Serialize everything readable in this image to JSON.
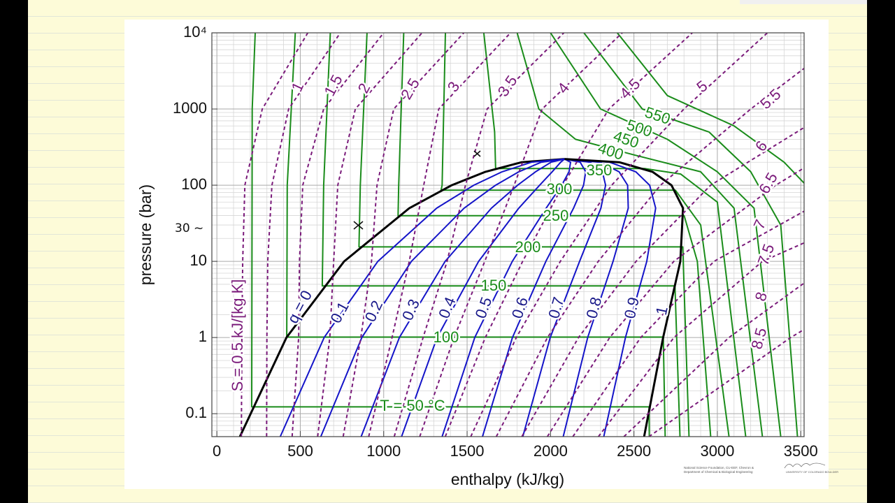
{
  "chart_data": {
    "type": "line",
    "xlabel": "enthalpy (kJ/kg)",
    "ylabel": "pressure (bar)",
    "xlim": [
      -30,
      3520
    ],
    "ylim": [
      0.05,
      10000
    ],
    "xticks": [
      0,
      500,
      1000,
      1500,
      2000,
      2500,
      3000,
      3500
    ],
    "yticks": [
      0.1,
      1,
      10,
      100,
      1000,
      {
        "value": 10000,
        "label": "10⁴"
      }
    ],
    "log_y": true,
    "grid": true,
    "minor_grid": true,
    "annotations": [
      "30 ~"
    ],
    "credits": [
      "National Science Foundation, CU-EEF, Chevron &",
      "Department of Chemical & Biological Engineering",
      "UNIVERSITY OF COLORADO BOULDER"
    ],
    "series": [
      {
        "name": "T = 50 °C",
        "color": "#1a8c1a",
        "dashed": false,
        "x": [
          230,
          212,
          209,
          2591,
          2592
        ],
        "values": [
          10000,
          1000,
          0.123,
          0.123,
          0.05
        ]
      },
      {
        "name": "100",
        "color": "#1a8c1a",
        "dashed": false,
        "x": [
          470,
          422,
          419,
          2676,
          2687
        ],
        "values": [
          10000,
          100,
          1.014,
          1.014,
          0.05
        ]
      },
      {
        "name": "150",
        "color": "#1a8c1a",
        "dashed": false,
        "x": [
          680,
          640,
          632,
          2746,
          2776
        ],
        "values": [
          10000,
          100,
          4.76,
          4.76,
          0.05
        ]
      },
      {
        "name": "200",
        "color": "#1a8c1a",
        "dashed": false,
        "x": [
          900,
          860,
          852,
          2793,
          2800,
          2830
        ],
        "values": [
          10000,
          100,
          15.5,
          15.5,
          5,
          0.05
        ]
      },
      {
        "name": "250",
        "color": "#1a8c1a",
        "dashed": false,
        "x": [
          1120,
          1090,
          1086,
          2801,
          2880,
          2960
        ],
        "values": [
          10000,
          100,
          39.7,
          39.7,
          10,
          0.05
        ]
      },
      {
        "name": "300",
        "color": "#1a8c1a",
        "dashed": false,
        "x": [
          1370,
          1350,
          1344,
          2749,
          2900,
          3070
        ],
        "values": [
          10000,
          100,
          85.9,
          85.9,
          30,
          0.05
        ]
      },
      {
        "name": "350",
        "color": "#1a8c1a",
        "dashed": false,
        "x": [
          1600,
          1665,
          1671,
          2564,
          2780,
          3000,
          3170
        ],
        "values": [
          10000,
          500,
          165.2,
          165.2,
          140,
          60,
          0.05
        ]
      },
      {
        "name": "400",
        "color": "#1a8c1a",
        "dashed": false,
        "x": [
          1800,
          1930,
          2150,
          2500,
          2900,
          3100,
          3270
        ],
        "values": [
          10000,
          1000,
          400,
          250,
          150,
          50,
          0.05
        ]
      },
      {
        "name": "450",
        "color": "#1a8c1a",
        "dashed": false,
        "x": [
          2000,
          2300,
          2700,
          3000,
          3220,
          3380
        ],
        "values": [
          10000,
          1000,
          400,
          150,
          50,
          0.05
        ]
      },
      {
        "name": "500",
        "color": "#1a8c1a",
        "dashed": false,
        "x": [
          2200,
          2550,
          2950,
          3200,
          3380,
          3480
        ],
        "values": [
          10000,
          1000,
          500,
          150,
          30,
          0.05
        ]
      },
      {
        "name": "550",
        "color": "#1a8c1a",
        "dashed": false,
        "x": [
          2400,
          2700,
          3100,
          3400,
          3600
        ],
        "values": [
          10000,
          1500,
          600,
          200,
          70
        ]
      },
      {
        "name": "q = 0",
        "color": "#000000",
        "dashed": false,
        "x": [
          138,
          417,
          763,
          1154,
          1408,
          1610,
          1827,
          2084
        ],
        "values": [
          0.05,
          1,
          10,
          50,
          100,
          150,
          200,
          220.6
        ]
      },
      {
        "name": "0.1",
        "color": "#1414c8",
        "dashed": false,
        "x": [
          380,
          643,
          965,
          1318,
          1540,
          1710,
          1886,
          2084
        ],
        "values": [
          0.05,
          1,
          10,
          50,
          100,
          150,
          200,
          220.6
        ]
      },
      {
        "name": "0.2",
        "color": "#1414c8",
        "dashed": false,
        "x": [
          623,
          869,
          1166,
          1482,
          1671,
          1810,
          1944,
          2084
        ],
        "values": [
          0.05,
          1,
          10,
          50,
          100,
          150,
          200,
          220.6
        ]
      },
      {
        "name": "0.3",
        "color": "#1414c8",
        "dashed": false,
        "x": [
          865,
          1094,
          1368,
          1646,
          1803,
          1910,
          2003,
          2084
        ],
        "values": [
          0.05,
          1,
          10,
          50,
          100,
          150,
          200,
          220.6
        ]
      },
      {
        "name": "0.4",
        "color": "#1414c8",
        "dashed": false,
        "x": [
          1107,
          1320,
          1569,
          1810,
          1935,
          2010,
          2061,
          2084
        ],
        "values": [
          0.05,
          1,
          10,
          50,
          100,
          150,
          200,
          220.6
        ]
      },
      {
        "name": "0.5",
        "color": "#1414c8",
        "dashed": false,
        "x": [
          1350,
          1546,
          1771,
          1974,
          2067,
          2111,
          2120,
          2084
        ],
        "values": [
          0.05,
          1,
          10,
          50,
          100,
          150,
          200,
          220.6
        ]
      },
      {
        "name": "0.6",
        "color": "#1414c8",
        "dashed": false,
        "x": [
          1592,
          1772,
          1972,
          2138,
          2198,
          2211,
          2178,
          2084
        ],
        "values": [
          0.05,
          1,
          10,
          50,
          100,
          150,
          200,
          220.6
        ]
      },
      {
        "name": "0.7",
        "color": "#1414c8",
        "dashed": false,
        "x": [
          1834,
          1998,
          2174,
          2302,
          2330,
          2311,
          2237,
          2084
        ],
        "values": [
          0.05,
          1,
          10,
          50,
          100,
          150,
          200,
          220.6
        ]
      },
      {
        "name": "0.8",
        "color": "#1414c8",
        "dashed": false,
        "x": [
          2076,
          2223,
          2375,
          2466,
          2462,
          2411,
          2295,
          2084
        ],
        "values": [
          0.05,
          1,
          10,
          50,
          100,
          150,
          200,
          220.6
        ]
      },
      {
        "name": "0.9",
        "color": "#1414c8",
        "dashed": false,
        "x": [
          2319,
          2449,
          2577,
          2630,
          2594,
          2511,
          2354,
          2084
        ],
        "values": [
          0.05,
          1,
          10,
          50,
          100,
          150,
          200,
          220.6
        ]
      },
      {
        "name": "1",
        "color": "#000000",
        "dashed": false,
        "x": [
          2561,
          2675,
          2778,
          2794,
          2725,
          2611,
          2412,
          2084
        ],
        "values": [
          0.05,
          1,
          10,
          50,
          100,
          150,
          200,
          220.6
        ]
      },
      {
        "name": "S = 0.5 kJ/[kg K]",
        "color": "#7a1a7a",
        "dashed": true,
        "x": [
          147,
          150,
          155,
          168,
          272,
          545
        ],
        "values": [
          0.05,
          1,
          10,
          100,
          1000,
          10000
        ]
      },
      {
        "name": "1",
        "color": "#7a1a7a",
        "dashed": true,
        "x": [
          298,
          300,
          305,
          330,
          430,
          740
        ],
        "values": [
          0.05,
          1,
          10,
          100,
          1000,
          10000
        ]
      },
      {
        "name": "1.5",
        "color": "#7a1a7a",
        "dashed": true,
        "x": [
          451,
          490,
          495,
          515,
          640,
          1000
        ],
        "values": [
          0.05,
          1,
          10,
          100,
          1000,
          10000
        ]
      },
      {
        "name": "2",
        "color": "#7a1a7a",
        "dashed": true,
        "x": [
          604,
          677,
          700,
          725,
          830,
          1230
        ],
        "values": [
          0.05,
          1,
          10,
          100,
          1000,
          10000
        ]
      },
      {
        "name": "2.5",
        "color": "#7a1a7a",
        "dashed": true,
        "x": [
          757,
          863,
          927,
          960,
          1060,
          1480
        ],
        "values": [
          0.05,
          1,
          10,
          100,
          1000,
          10000
        ]
      },
      {
        "name": "3",
        "color": "#7a1a7a",
        "dashed": true,
        "x": [
          910,
          1050,
          1153,
          1240,
          1330,
          1760
        ],
        "values": [
          0.05,
          1,
          10,
          100,
          1000,
          10000
        ]
      },
      {
        "name": "3.5",
        "color": "#7a1a7a",
        "dashed": true,
        "x": [
          1063,
          1236,
          1380,
          1490,
          1620,
          2080
        ],
        "values": [
          0.05,
          1,
          10,
          100,
          1000,
          10000
        ]
      },
      {
        "name": "4",
        "color": "#7a1a7a",
        "dashed": true,
        "x": [
          1216,
          1422,
          1606,
          1782,
          1950,
          2430
        ],
        "values": [
          0.05,
          1,
          10,
          100,
          1000,
          10000
        ]
      },
      {
        "name": "4.5",
        "color": "#7a1a7a",
        "dashed": true,
        "x": [
          1369,
          1609,
          1833,
          2074,
          2350,
          2850
        ],
        "values": [
          0.05,
          1,
          10,
          100,
          1000,
          10000
        ]
      },
      {
        "name": "5",
        "color": "#7a1a7a",
        "dashed": true,
        "x": [
          1522,
          1795,
          2059,
          2366,
          2800,
          3300
        ],
        "values": [
          0.05,
          1,
          10,
          100,
          1000,
          10000
        ]
      },
      {
        "name": "5.5",
        "color": "#7a1a7a",
        "dashed": true,
        "x": [
          1675,
          1982,
          2286,
          2659,
          3200,
          3800
        ],
        "values": [
          0.05,
          1,
          10,
          100,
          1000,
          10000
        ]
      },
      {
        "name": "6",
        "color": "#7a1a7a",
        "dashed": true,
        "x": [
          1828,
          2168,
          2513,
          2960,
          3700
        ],
        "values": [
          0.05,
          1,
          10,
          100,
          1000
        ]
      },
      {
        "name": "6.5",
        "color": "#7a1a7a",
        "dashed": true,
        "x": [
          1981,
          2355,
          2739,
          3350,
          4100
        ],
        "values": [
          0.05,
          1,
          10,
          100,
          1000
        ]
      },
      {
        "name": "7",
        "color": "#7a1a7a",
        "dashed": true,
        "x": [
          2134,
          2541,
          2980,
          3800
        ],
        "values": [
          0.05,
          1,
          10,
          100
        ]
      },
      {
        "name": "7.5",
        "color": "#7a1a7a",
        "dashed": true,
        "x": [
          2287,
          2740,
          3270,
          4300
        ],
        "values": [
          0.05,
          1,
          10,
          100
        ]
      },
      {
        "name": "8",
        "color": "#7a1a7a",
        "dashed": true,
        "x": [
          2440,
          3070,
          3700
        ],
        "values": [
          0.05,
          1,
          10
        ]
      },
      {
        "name": "8.5",
        "color": "#7a1a7a",
        "dashed": true,
        "x": [
          2590,
          3440,
          4200
        ],
        "values": [
          0.05,
          1,
          10
        ]
      }
    ]
  }
}
